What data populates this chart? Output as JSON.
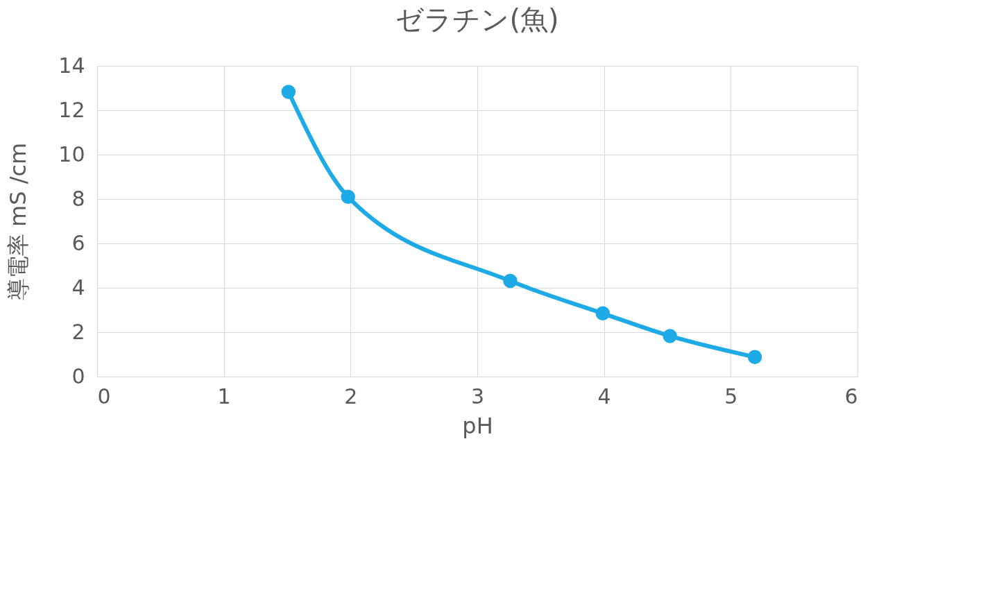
{
  "chart_data": {
    "type": "line",
    "title": "ゼラチン(魚)",
    "xlabel": "pH",
    "ylabel": "導電率 mS /cm",
    "xlim": [
      0,
      6
    ],
    "xticks": [
      0,
      1,
      2,
      3,
      4,
      5,
      6
    ],
    "ylim": [
      0,
      14
    ],
    "yticks": [
      0,
      2,
      4,
      6,
      8,
      10,
      12,
      14
    ],
    "grid": true,
    "marker": "circle",
    "series": [
      {
        "color": "#1eaae6",
        "x": [
          1.51,
          1.98,
          3.26,
          3.99,
          4.52,
          5.19
        ],
        "values": [
          12.83,
          8.1,
          4.31,
          2.85,
          1.83,
          0.88
        ]
      }
    ]
  }
}
